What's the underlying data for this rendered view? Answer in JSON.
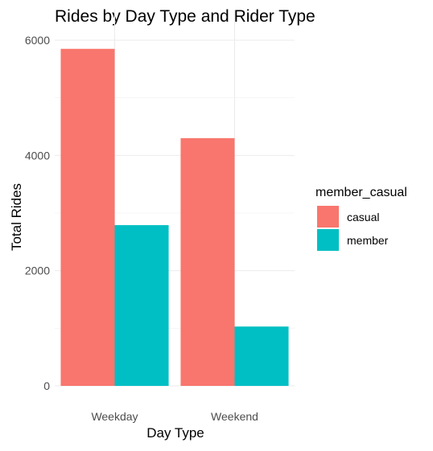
{
  "chart_data": {
    "type": "bar",
    "title": "Rides by Day Type and Rider Type",
    "xlabel": "Day Type",
    "ylabel": "Total Rides",
    "categories": [
      "Weekday",
      "Weekend"
    ],
    "series": [
      {
        "name": "casual",
        "color": "#F8766D",
        "values": [
          5850,
          4300
        ]
      },
      {
        "name": "member",
        "color": "#00BFC4",
        "values": [
          2790,
          1030
        ]
      }
    ],
    "ylim": [
      0,
      6000
    ],
    "yticks": [
      0,
      2000,
      4000,
      6000
    ],
    "ytick_labels": [
      "0",
      "2000",
      "4000",
      "6000"
    ],
    "grid": true,
    "legend": {
      "title": "member_casual",
      "placement": "right",
      "entries": [
        "casual",
        "member"
      ]
    }
  }
}
